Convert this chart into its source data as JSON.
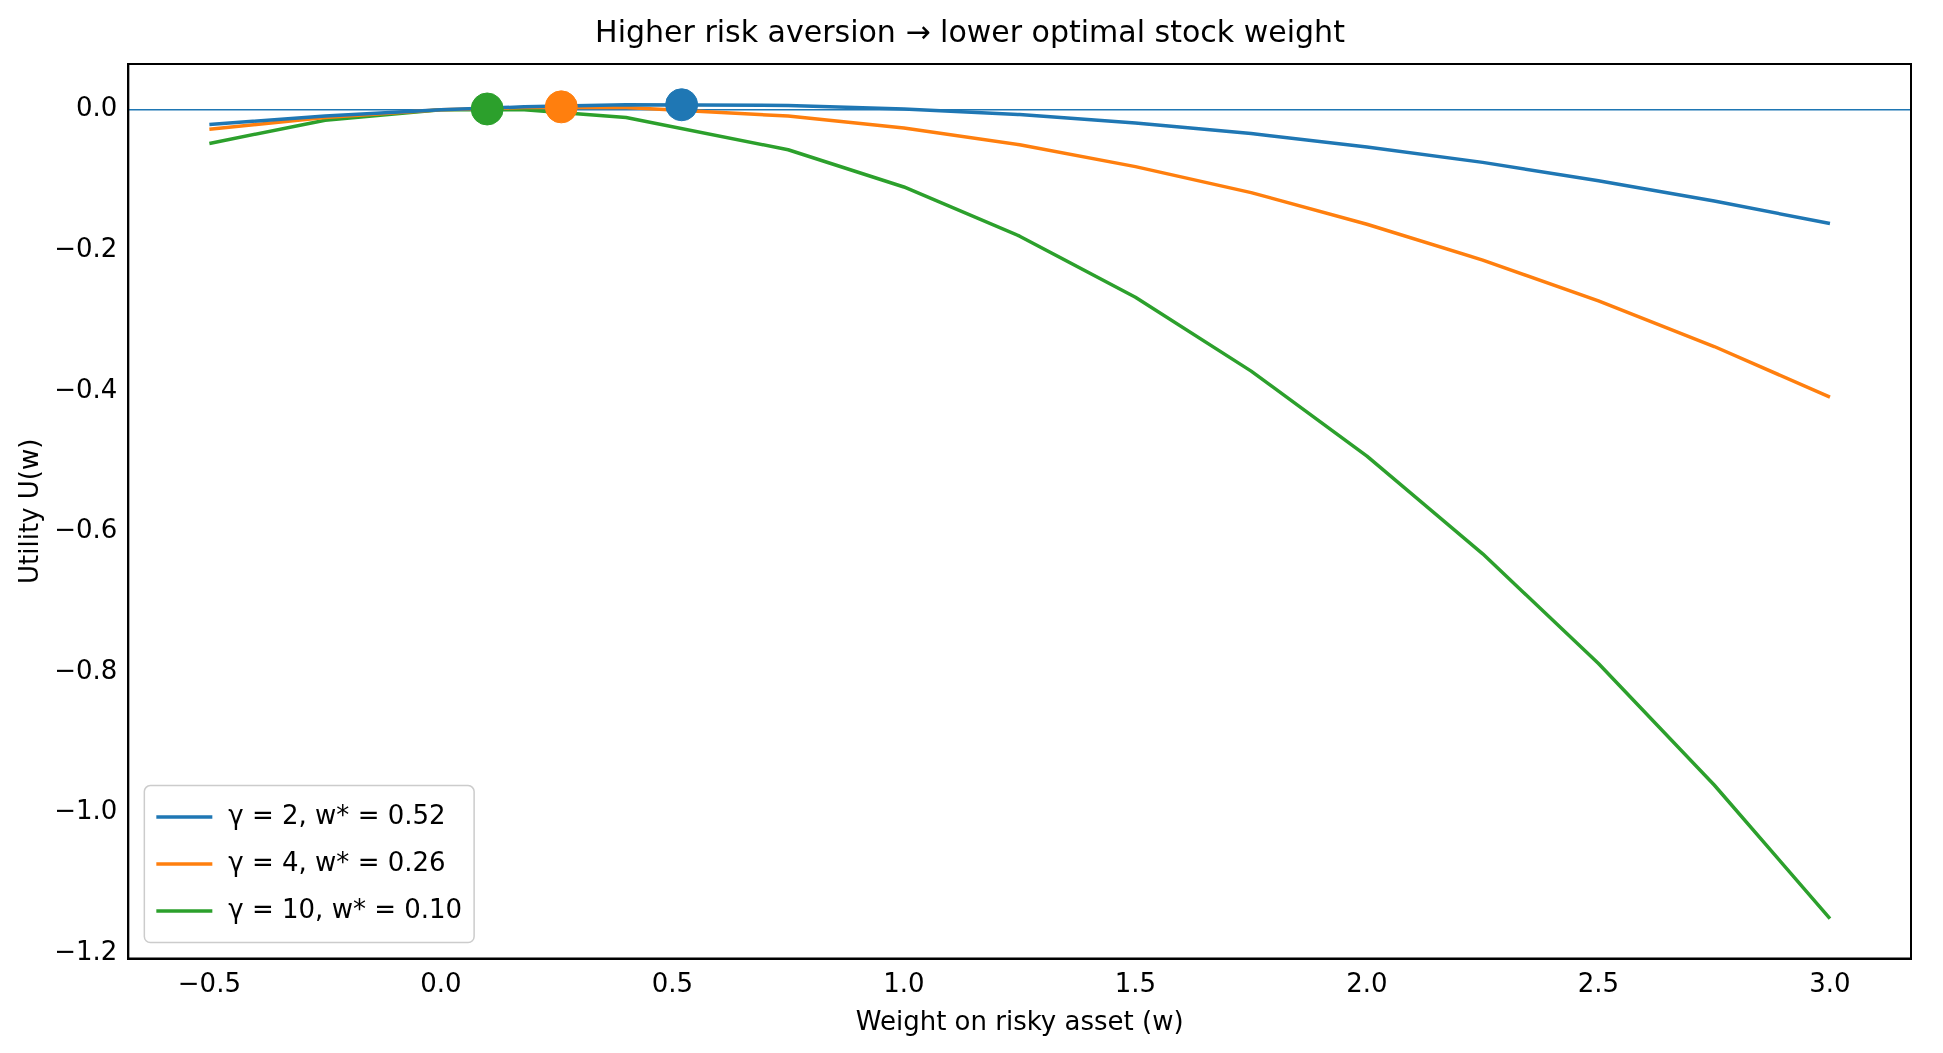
{
  "chart_data": {
    "type": "line",
    "title": "Higher risk aversion → lower optimal stock weight",
    "xlabel": "Weight on risky asset (w)",
    "ylabel": "Utility U(w)",
    "x": [
      -0.5,
      -0.25,
      0,
      0.18,
      0.4,
      0.75,
      1.0,
      1.25,
      1.5,
      1.75,
      2.0,
      2.25,
      2.5,
      2.75,
      3.0
    ],
    "series": [
      {
        "name": "γ = 2, w* = 0.52",
        "color": "#1f77b4",
        "values": [
          -0.021,
          -0.009,
          0,
          0.004,
          0.007,
          0.006,
          0.001,
          -0.007,
          -0.019,
          -0.034,
          -0.053,
          -0.075,
          -0.101,
          -0.13,
          -0.162
        ]
      },
      {
        "name": "γ = 4, w* = 0.26",
        "color": "#ff7f0e",
        "values": [
          -0.028,
          -0.011,
          0,
          0.003,
          0.003,
          -0.009,
          -0.026,
          -0.05,
          -0.081,
          -0.118,
          -0.163,
          -0.214,
          -0.272,
          -0.337,
          -0.409
        ]
      },
      {
        "name": "γ = 10, w* = 0.10",
        "color": "#2ca02c",
        "values": [
          -0.048,
          -0.015,
          0,
          0.0,
          -0.011,
          -0.057,
          -0.11,
          -0.18,
          -0.267,
          -0.372,
          -0.493,
          -0.632,
          -0.788,
          -0.961,
          -1.151
        ]
      },
      {
        "type": "scatter",
        "marker": "circle",
        "color": "#1f77b4",
        "x": [
          0.52
        ],
        "values": [
          0.007
        ]
      },
      {
        "type": "scatter",
        "marker": "circle",
        "color": "#ff7f0e",
        "x": [
          0.26
        ],
        "values": [
          0.004
        ]
      },
      {
        "type": "scatter",
        "marker": "circle",
        "color": "#2ca02c",
        "x": [
          0.1
        ],
        "values": [
          0.001
        ]
      }
    ],
    "xlim": [
      -0.675,
      3.175
    ],
    "ylim": [
      -1.208,
      0.065
    ],
    "xticks": [
      {
        "value": -0.5,
        "label": "−0.5"
      },
      {
        "value": 0,
        "label": "0.0"
      },
      0.5,
      {
        "value": 1,
        "label": "1.0"
      },
      1.5,
      {
        "value": 2,
        "label": "2.0"
      },
      2.5,
      {
        "value": 3,
        "label": "3.0"
      }
    ],
    "yticks": [
      {
        "value": -1.2,
        "label": "−1.2"
      },
      {
        "value": -1.0,
        "label": "−1.0"
      },
      {
        "value": -0.8,
        "label": "−0.8"
      },
      {
        "value": -0.6,
        "label": "−0.6"
      },
      {
        "value": -0.4,
        "label": "−0.4"
      },
      {
        "value": -0.2,
        "label": "−0.2"
      },
      {
        "value": 0,
        "label": "0.0"
      }
    ],
    "ref_lines": [
      {
        "axis": "y",
        "value": 0,
        "color": "#1f77b4"
      }
    ],
    "legend": "bottom left",
    "line_style": "solid",
    "marker": "none"
  }
}
